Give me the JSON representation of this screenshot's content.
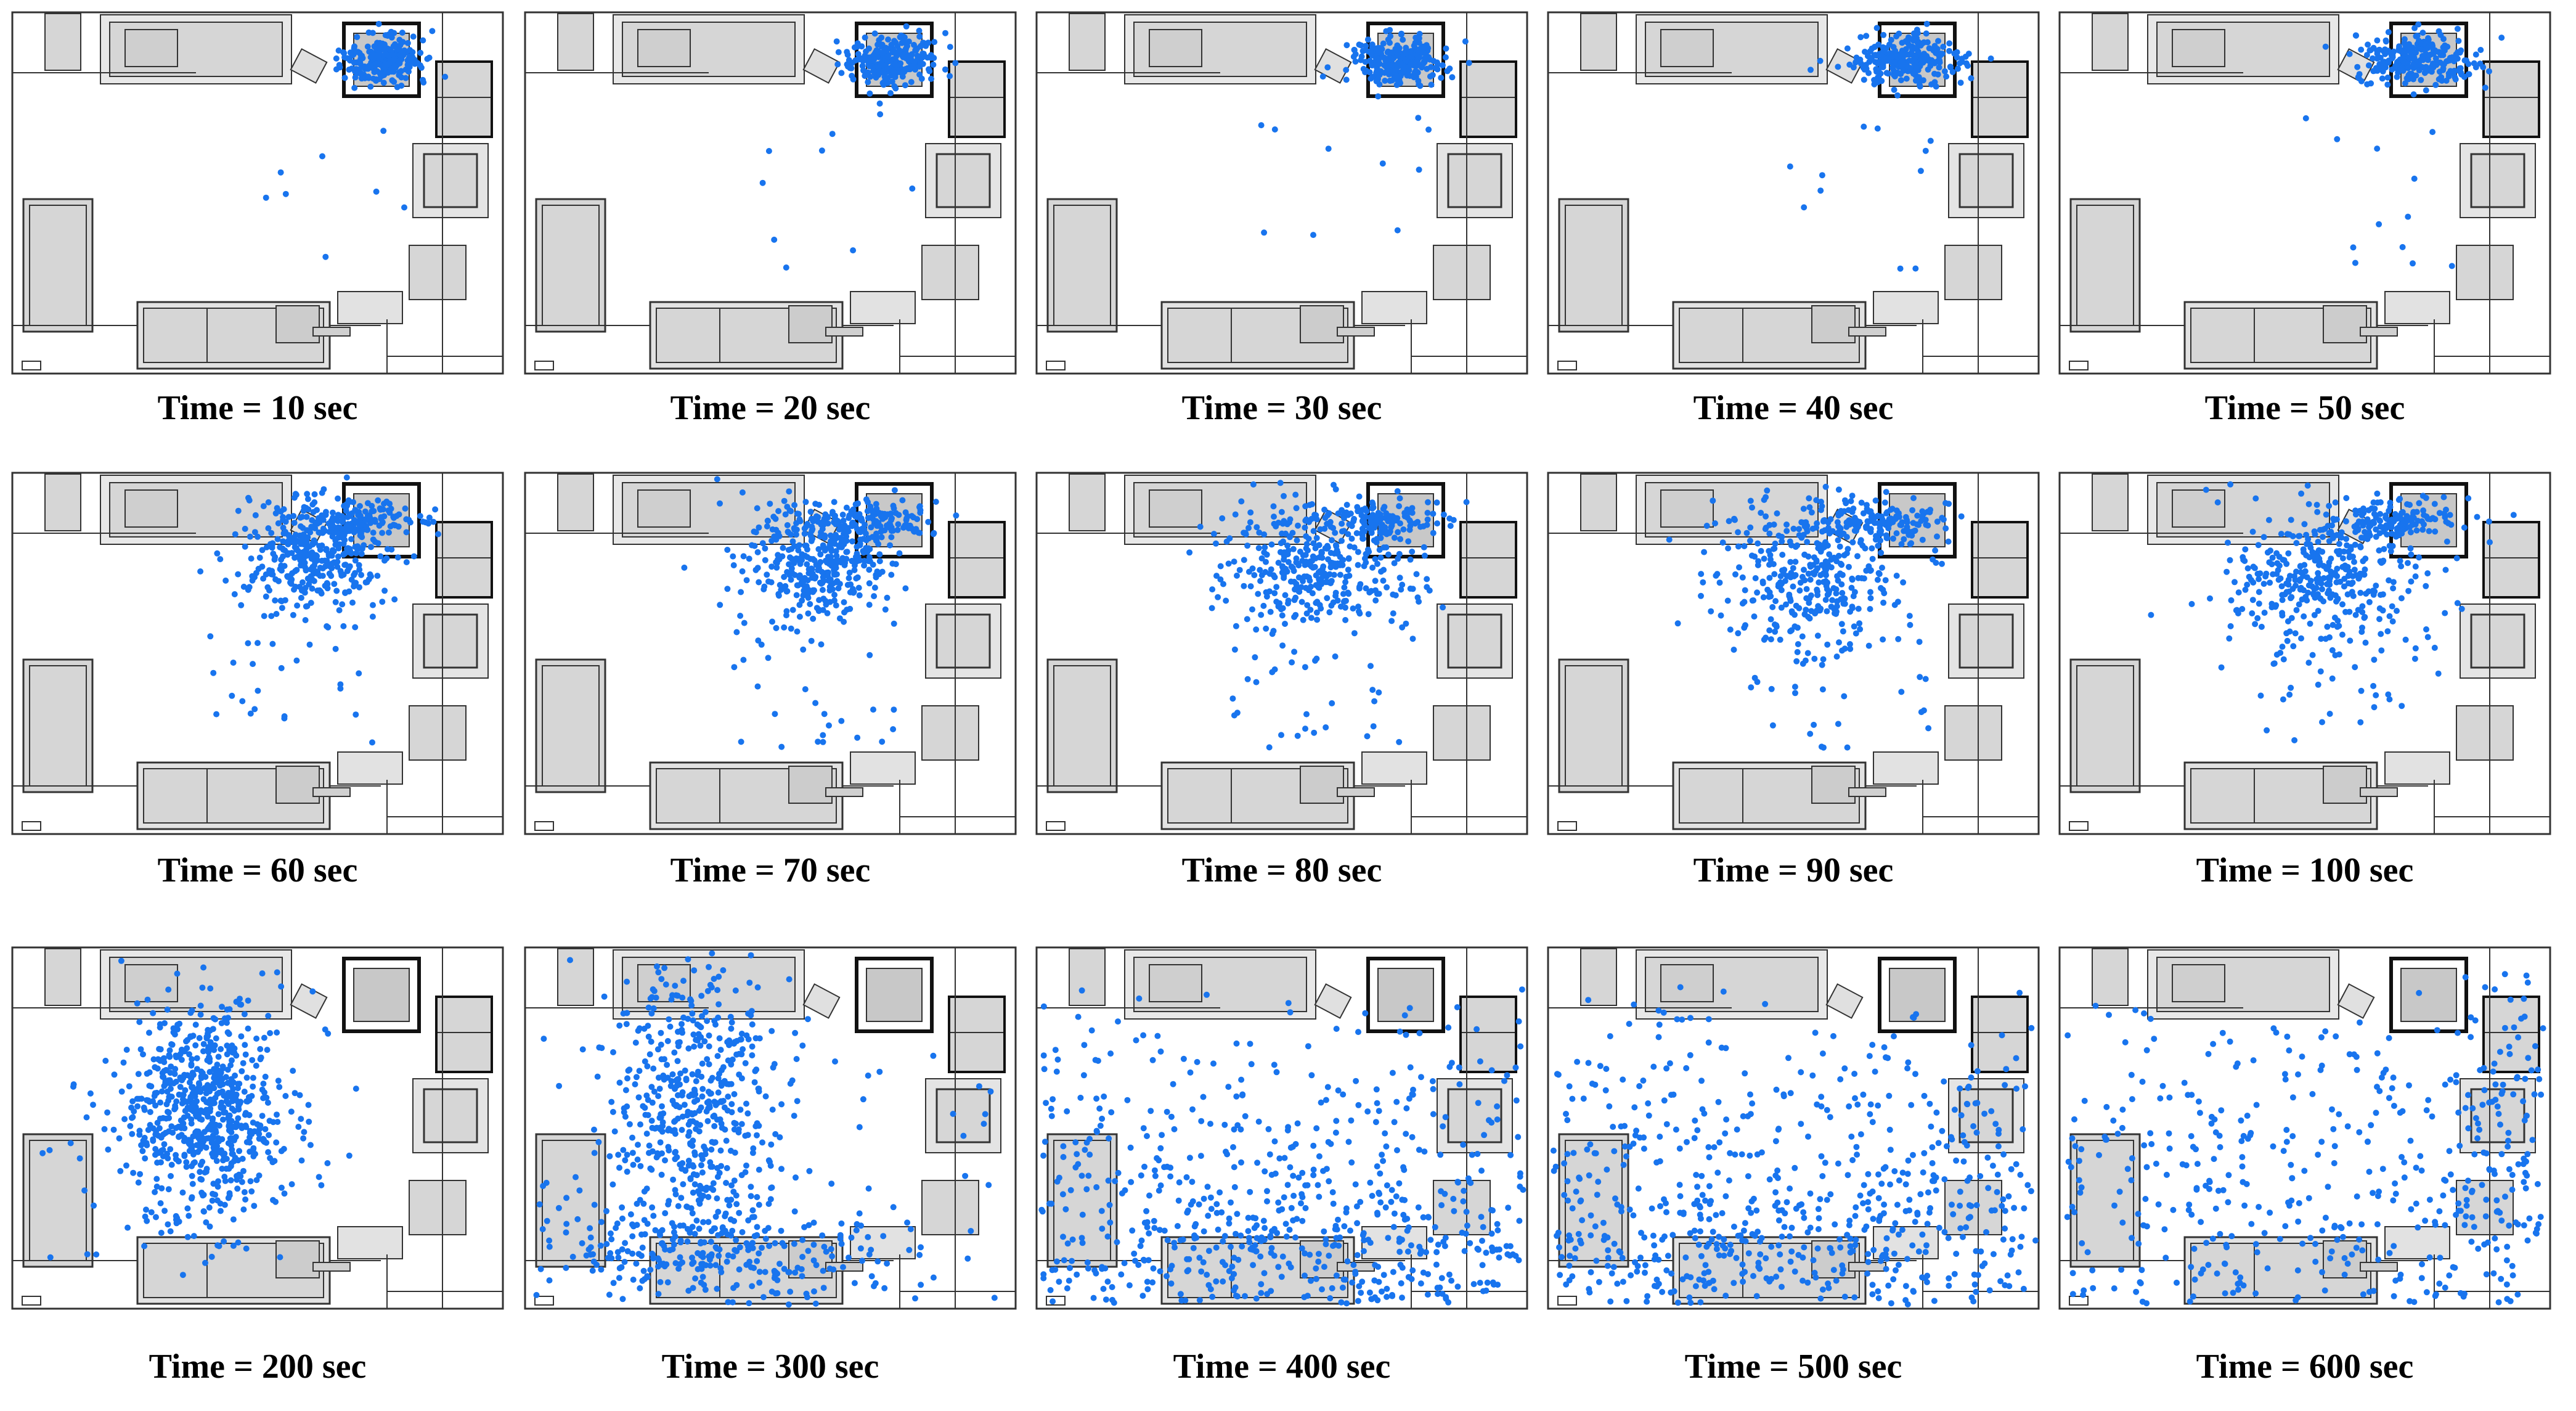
{
  "figure": {
    "particle_color": "#1874ee",
    "furniture_fill": "#d6d6d6",
    "line_color": "#333333",
    "panels": [
      {
        "caption": "Time = 10 sec",
        "spread": 0.0,
        "cloud": "vent"
      },
      {
        "caption": "Time = 20 sec",
        "spread": 0.05,
        "cloud": "vent"
      },
      {
        "caption": "Time = 30 sec",
        "spread": 0.1,
        "cloud": "vent"
      },
      {
        "caption": "Time = 40 sec",
        "spread": 0.15,
        "cloud": "vent"
      },
      {
        "caption": "Time = 50 sec",
        "spread": 0.2,
        "cloud": "vent"
      },
      {
        "caption": "Time = 60 sec",
        "spread": 0.3,
        "cloud": "plume"
      },
      {
        "caption": "Time = 70 sec",
        "spread": 0.35,
        "cloud": "plume"
      },
      {
        "caption": "Time = 80 sec",
        "spread": 0.45,
        "cloud": "plume"
      },
      {
        "caption": "Time = 90 sec",
        "spread": 0.55,
        "cloud": "plume"
      },
      {
        "caption": "Time = 100 sec",
        "spread": 0.6,
        "cloud": "plume"
      },
      {
        "caption": "Time = 200 sec",
        "spread": 0.7,
        "cloud": "center"
      },
      {
        "caption": "Time = 300 sec",
        "spread": 0.8,
        "cloud": "floor"
      },
      {
        "caption": "Time = 400 sec",
        "spread": 0.9,
        "cloud": "dispersed"
      },
      {
        "caption": "Time = 500 sec",
        "spread": 0.95,
        "cloud": "dispersed"
      },
      {
        "caption": "Time = 600 sec",
        "spread": 1.0,
        "cloud": "sparse"
      }
    ]
  }
}
